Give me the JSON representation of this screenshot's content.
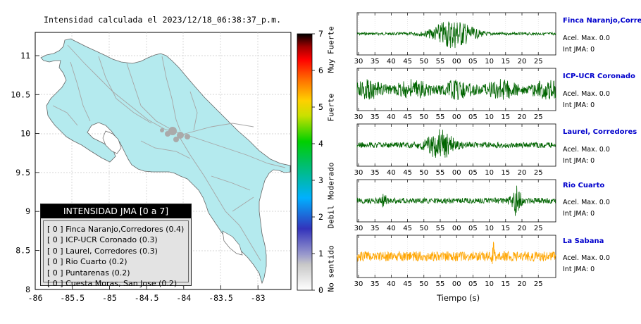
{
  "title": "Intensidad calculada el 2023/12/18_06:38:37_p.m.",
  "map": {
    "lon_ticks": [
      "-86",
      "-85.5",
      "-85",
      "-84.5",
      "-84",
      "-83.5",
      "-83"
    ],
    "lat_ticks": [
      "11",
      "10.5",
      "10",
      "9.5",
      "9",
      "8.5",
      "8"
    ]
  },
  "colorbar": {
    "ticks": [
      "0",
      "1",
      "2",
      "3",
      "4",
      "5",
      "6",
      "7"
    ],
    "category_labels": [
      "No sentido",
      "Debil",
      "Moderado",
      "Fuerte",
      "Muy Fuerte"
    ],
    "colors": [
      "#ffffff",
      "#b3b3b3",
      "#4444cc",
      "#00b0ff",
      "#00d000",
      "#ffe000",
      "#ff7000",
      "#ff0000",
      "#000000"
    ]
  },
  "legend": {
    "title": "INTENSIDAD JMA [0 a 7]",
    "items": [
      "[ 0 ] Finca Naranjo,Corredores (0.4)",
      "[ 0 ] ICP-UCR Coronado (0.3)",
      "[ 0 ] Laurel, Corredores (0.3)",
      "[ 0 ] Rio Cuarto (0.2)",
      "[ 0 ] Puntarenas (0.2)",
      "[ 0 ] Cuesta Moras, San Jose (0.2)"
    ]
  },
  "waveforms": {
    "xlabel": "Tiempo (s)",
    "x_tick_labels": [
      "30",
      "35",
      "40",
      "45",
      "50",
      "55",
      "00",
      "05",
      "10",
      "15",
      "20",
      "25"
    ],
    "stations": [
      {
        "name": "Finca Naranjo,Corredores",
        "accel": "Acel. Max. 0.0",
        "intensity": "Int JMA: 0",
        "color": "#006400"
      },
      {
        "name": "ICP-UCR Coronado",
        "accel": "Acel. Max. 0.0",
        "intensity": "Int JMA: 0",
        "color": "#006400"
      },
      {
        "name": "Laurel, Corredores",
        "accel": "Acel. Max. 0.0",
        "intensity": "Int JMA: 0",
        "color": "#006400"
      },
      {
        "name": "Rio Cuarto",
        "accel": "Acel. Max. 0.0",
        "intensity": "Int JMA: 0",
        "color": "#006400"
      },
      {
        "name": "La Sabana",
        "accel": "Acel. Max. 0.0",
        "intensity": "Int JMA: 0",
        "color": "#ffa500"
      }
    ]
  },
  "chart_data": [
    {
      "type": "heatmap",
      "title": "Intensidad calculada el 2023/12/18_06:38:37_p.m.",
      "xlim": [
        -86,
        -82.5
      ],
      "ylim": [
        8,
        11.3
      ],
      "colorbar_range": [
        0,
        7
      ],
      "values_description_free": true,
      "legend_title": "INTENSIDAD JMA [0 a 7]",
      "stations": [
        {
          "name": "Finca Naranjo,Corredores",
          "intensity": 0,
          "value": 0.4
        },
        {
          "name": "ICP-UCR Coronado",
          "intensity": 0,
          "value": 0.3
        },
        {
          "name": "Laurel, Corredores",
          "intensity": 0,
          "value": 0.3
        },
        {
          "name": "Rio Cuarto",
          "intensity": 0,
          "value": 0.2
        },
        {
          "name": "Puntarenas",
          "intensity": 0,
          "value": 0.2
        },
        {
          "name": "Cuesta Moras, San Jose",
          "intensity": 0,
          "value": 0.2
        }
      ]
    },
    {
      "type": "line",
      "xlabel": "Tiempo (s)",
      "x": [
        "30",
        "35",
        "40",
        "45",
        "50",
        "55",
        "00",
        "05",
        "10",
        "15",
        "20",
        "25"
      ],
      "series": [
        {
          "name": "Finca Naranjo,Corredores",
          "max_accel": 0.0,
          "jma": 0,
          "burst": [
            54,
            9
          ]
        },
        {
          "name": "ICP-UCR Coronado",
          "max_accel": 0.0,
          "jma": 0,
          "burst": [
            29,
            29
          ]
        },
        {
          "name": "Laurel, Corredores",
          "max_accel": 0.0,
          "jma": 0,
          "burst": [
            50,
            0
          ]
        },
        {
          "name": "Rio Cuarto",
          "max_accel": 0.0,
          "jma": 0,
          "burst": [
            15,
            19
          ]
        },
        {
          "name": "La Sabana",
          "max_accel": 0.0,
          "jma": 0,
          "burst": [
            9,
            11
          ]
        }
      ]
    }
  ]
}
